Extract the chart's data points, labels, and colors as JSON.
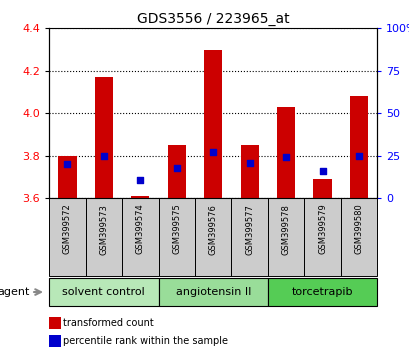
{
  "title": "GDS3556 / 223965_at",
  "samples": [
    "GSM399572",
    "GSM399573",
    "GSM399574",
    "GSM399575",
    "GSM399576",
    "GSM399577",
    "GSM399578",
    "GSM399579",
    "GSM399580"
  ],
  "transformed_count": [
    3.8,
    4.17,
    3.61,
    3.85,
    4.3,
    3.85,
    4.03,
    3.69,
    4.08
  ],
  "percentile_rank": [
    20,
    25,
    11,
    18,
    27,
    21,
    24,
    16,
    25
  ],
  "bar_bottom": 3.6,
  "ylim_left": [
    3.6,
    4.4
  ],
  "ylim_right": [
    0,
    100
  ],
  "yticks_left": [
    3.6,
    3.8,
    4.0,
    4.2,
    4.4
  ],
  "yticks_right": [
    0,
    25,
    50,
    75,
    100
  ],
  "bar_color": "#cc0000",
  "dot_color": "#0000cc",
  "groups": [
    {
      "label": "solvent control",
      "indices": [
        0,
        1,
        2
      ]
    },
    {
      "label": "angiotensin II",
      "indices": [
        3,
        4,
        5
      ]
    },
    {
      "label": "torcetrapib",
      "indices": [
        6,
        7,
        8
      ]
    }
  ],
  "group_colors": [
    "#b8e8b8",
    "#99dd99",
    "#55cc55"
  ],
  "sample_bg_color": "#cccccc",
  "legend_items": [
    {
      "label": "transformed count",
      "color": "#cc0000"
    },
    {
      "label": "percentile rank within the sample",
      "color": "#0000cc"
    }
  ],
  "left_label_color": "red",
  "right_label_color": "blue",
  "title_fontsize": 10,
  "tick_fontsize": 8,
  "sample_fontsize": 6,
  "group_fontsize": 8,
  "legend_fontsize": 7
}
